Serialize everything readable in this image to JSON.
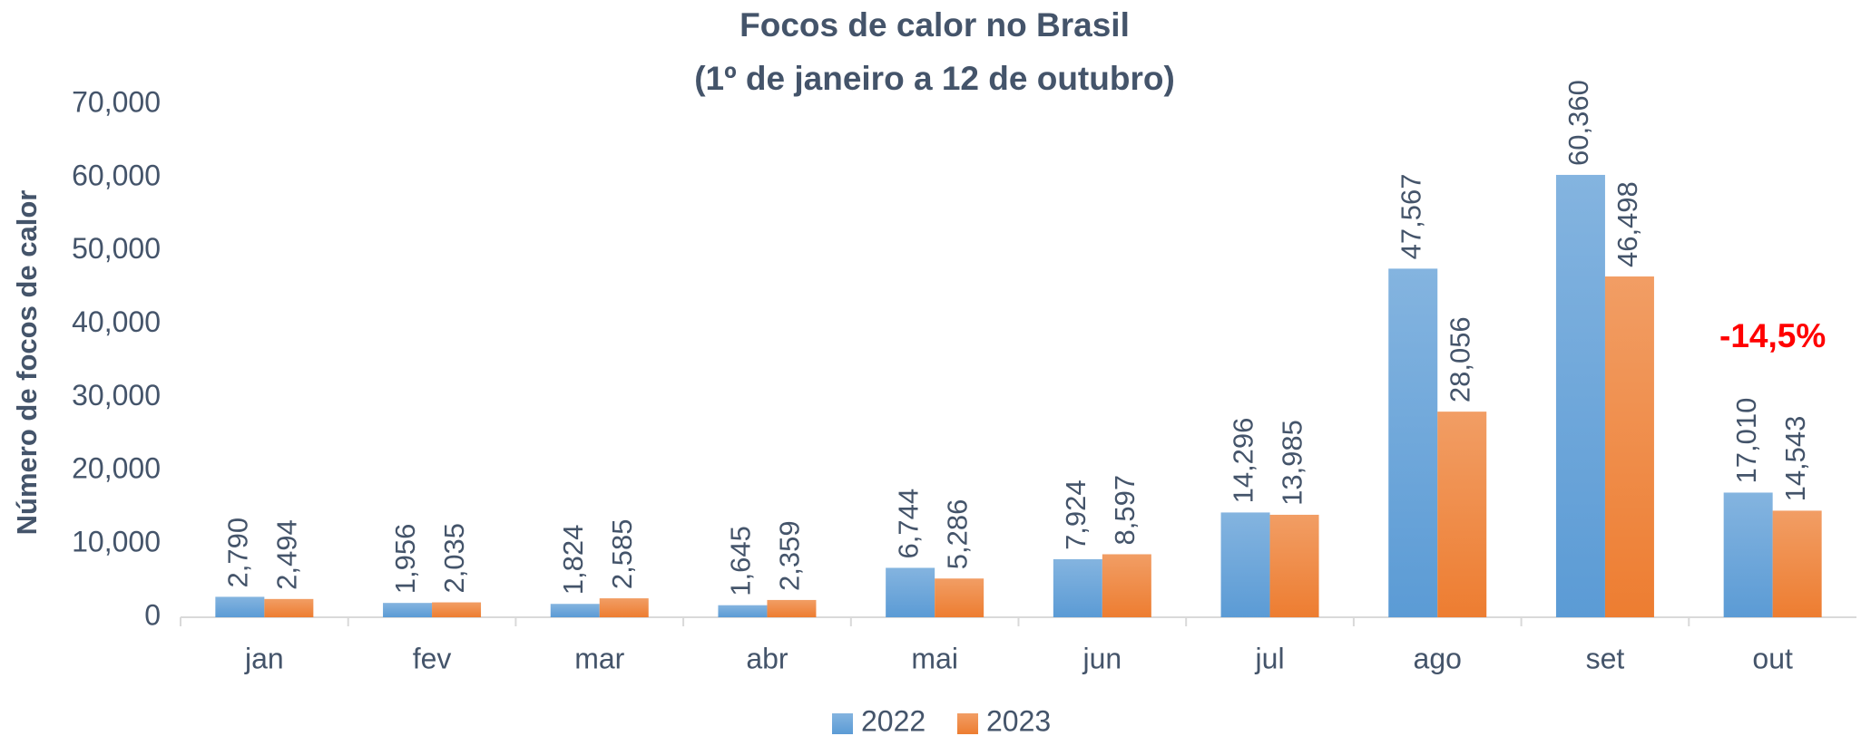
{
  "chart_data": {
    "type": "bar",
    "title": "Focos de calor no Brasil",
    "subtitle": "(1º de janeiro a 12 de outubro)",
    "y_label": "Número de focos de calor",
    "annotation": "-14,5%",
    "categories": [
      "jan",
      "fev",
      "mar",
      "abr",
      "mai",
      "jun",
      "jul",
      "ago",
      "set",
      "out"
    ],
    "series": [
      {
        "name": "2022",
        "color": "#5b9bd5",
        "values": [
          2790,
          1956,
          1824,
          1645,
          6744,
          7924,
          14296,
          47567,
          60360,
          17010
        ],
        "value_labels": [
          "2,790",
          "1,956",
          "1,824",
          "1,645",
          "6,744",
          "7,924",
          "14,296",
          "47,567",
          "60,360",
          "17,010"
        ]
      },
      {
        "name": "2023",
        "color": "#ed7d31",
        "values": [
          2494,
          2035,
          2585,
          2359,
          5286,
          8597,
          13985,
          28056,
          46498,
          14543
        ],
        "value_labels": [
          "2,494",
          "2,035",
          "2,585",
          "2,359",
          "5,286",
          "8,597",
          "13,985",
          "28,056",
          "46,498",
          "14,543"
        ]
      }
    ],
    "ylim": [
      0,
      70000
    ],
    "yticks": [
      0,
      {
        "value": 10000,
        "label": "10,000"
      },
      {
        "value": 20000,
        "label": "20,000"
      },
      {
        "value": 30000,
        "label": "30,000"
      },
      {
        "value": 40000,
        "label": "40,000"
      },
      {
        "value": 50000,
        "label": "50,000"
      },
      {
        "value": 60000,
        "label": "60,000"
      },
      {
        "value": 70000,
        "label": "70,000"
      }
    ],
    "legend": "bottom"
  }
}
